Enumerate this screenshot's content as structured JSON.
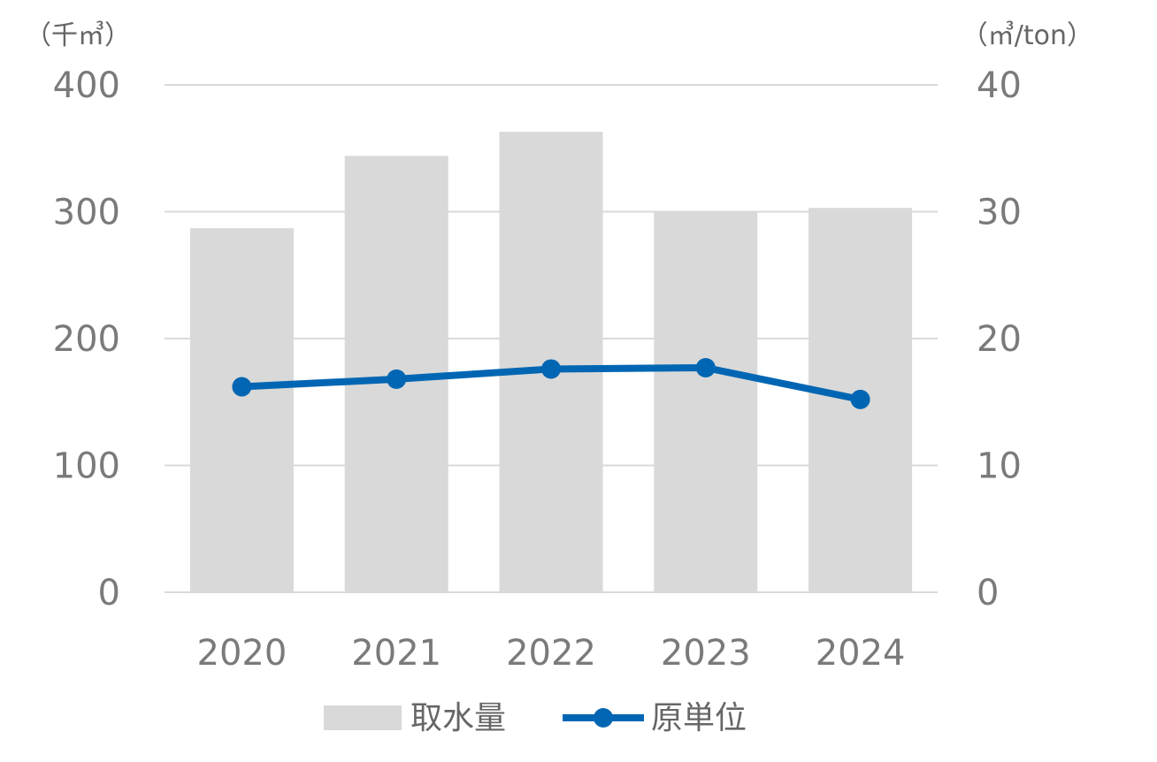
{
  "chart_data": {
    "type": "bar",
    "categories": [
      "2020",
      "2021",
      "2022",
      "2023",
      "2024"
    ],
    "series": [
      {
        "name": "取水量",
        "type": "bar",
        "axis": "left",
        "values": [
          287,
          344,
          363,
          300,
          303
        ]
      },
      {
        "name": "原単位",
        "type": "line",
        "axis": "right",
        "values": [
          16.2,
          16.8,
          17.6,
          17.7,
          15.2
        ]
      }
    ],
    "y_left": {
      "unit": "（千㎥）",
      "ticks": [
        "0",
        "100",
        "200",
        "300",
        "400"
      ],
      "ylim": [
        0,
        400
      ]
    },
    "y_right": {
      "unit": "（㎥/ton）",
      "ticks": [
        "0",
        "10",
        "20",
        "30",
        "40"
      ],
      "ylim": [
        0,
        40
      ]
    },
    "grid": true,
    "legend": "bottom",
    "colors": {
      "bar": "#d9d9d9",
      "line": "#0066b3",
      "grid": "#d9d9d9"
    }
  }
}
